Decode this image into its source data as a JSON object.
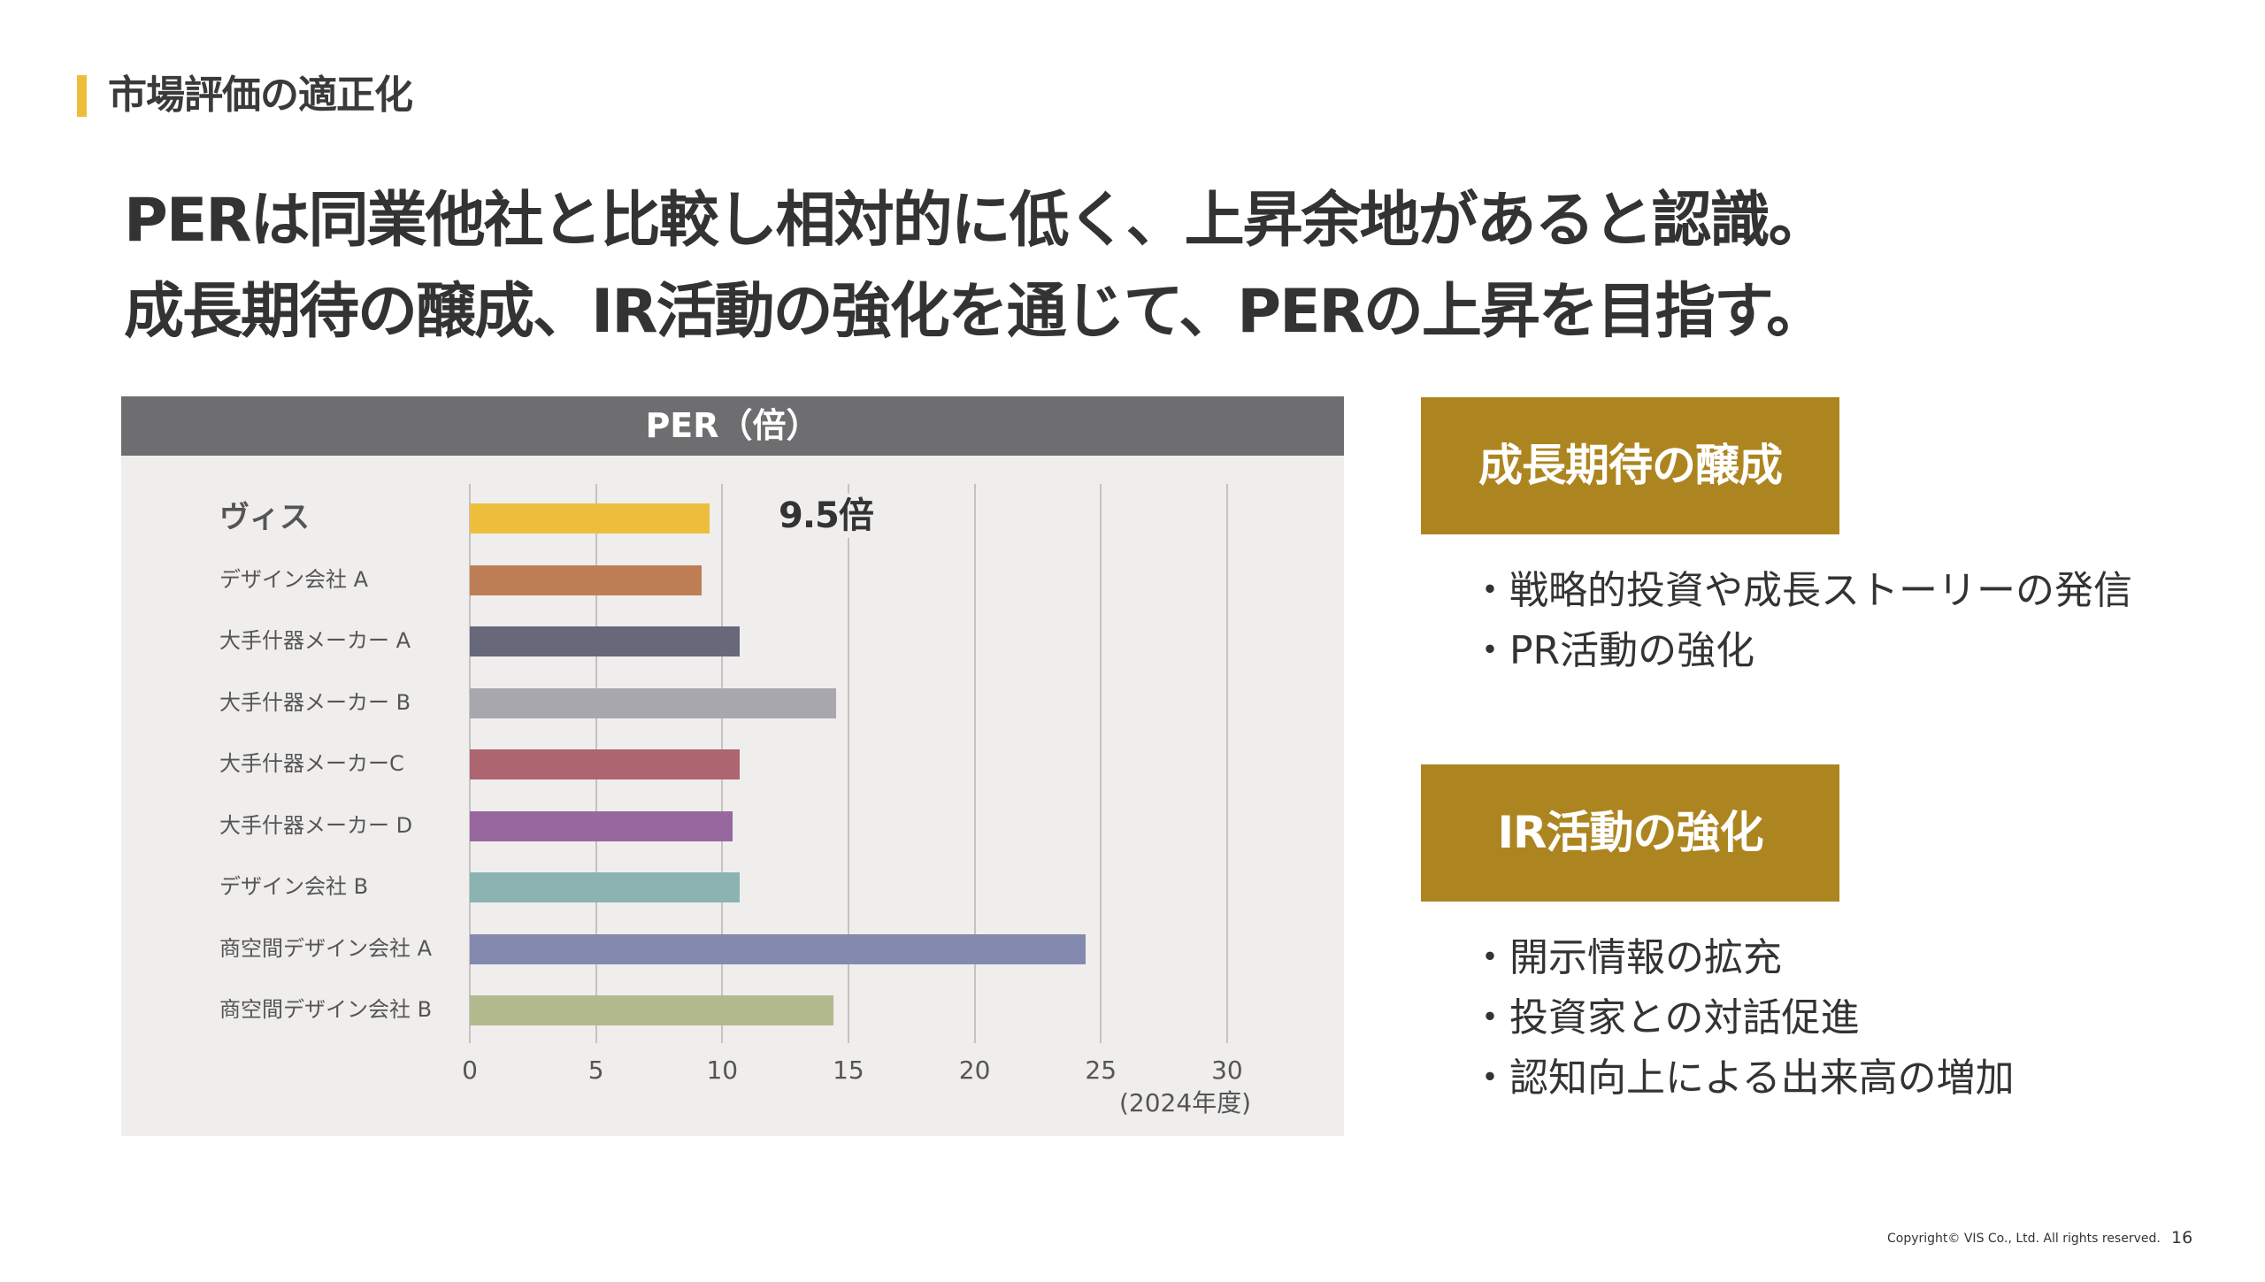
{
  "section": {
    "title": "市場評価の適正化",
    "accent_color": "#EDBE3C"
  },
  "headline": {
    "line1": "PERは同業他社と比較し相対的に低く、上昇余地があると認識。",
    "line2": "成長期待の醸成、IR活動の強化を通じて、PERの上昇を目指す。"
  },
  "chart_data": {
    "type": "bar",
    "orientation": "horizontal",
    "title": "PER（倍）",
    "categories": [
      "ヴィス",
      "デザイン会社 A",
      "大手什器メーカー A",
      "大手什器メーカー B",
      "大手什器メーカーC",
      "大手什器メーカー D",
      "デザイン会社 B",
      "商空間デザイン会社 A",
      "商空間デザイン会社 B"
    ],
    "values": [
      9.5,
      9.2,
      10.7,
      14.5,
      10.7,
      10.4,
      10.7,
      24.4,
      14.4
    ],
    "colors": [
      "#EDBE3C",
      "#BE7E56",
      "#676879",
      "#A8A7AD",
      "#AD6570",
      "#97679E",
      "#8BB3B2",
      "#8489AE",
      "#B2B98D"
    ],
    "highlight": {
      "category": "ヴィス",
      "label": "9.5倍"
    },
    "xlabel": "",
    "ylabel": "",
    "xlim": [
      0,
      30
    ],
    "xticks": [
      "0",
      "5",
      "10",
      "15",
      "20",
      "25",
      "30"
    ],
    "x_note": "(2024年度)",
    "grid": true
  },
  "boxes": [
    {
      "title": "成長期待の醸成",
      "bullets": [
        "・戦略的投資や成長ストーリーの発信",
        "・PR活動の強化"
      ]
    },
    {
      "title": "IR活動の強化",
      "bullets": [
        "・開示情報の拡充",
        "・投資家との対話促進",
        "・認知向上による出来高の増加"
      ]
    }
  ],
  "box_color": "#AD8520",
  "footer": {
    "copyright": "Copyright© VIS Co., Ltd. All rights reserved.",
    "page": "16"
  }
}
